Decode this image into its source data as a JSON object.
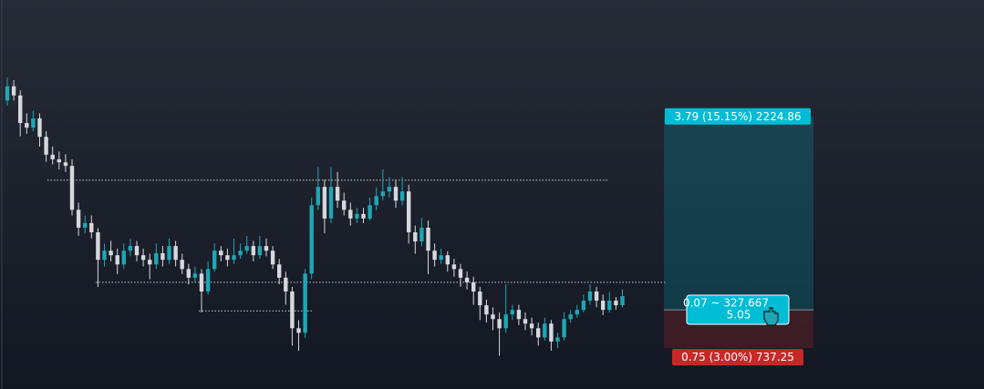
{
  "chart_data": {
    "type": "candlestick",
    "ylim": [
      23.45,
      31.07
    ],
    "up_color": "#1fa6b4",
    "down_color": "#d6d8de",
    "candles": [
      [
        29.1,
        29.55,
        29.0,
        29.38
      ],
      [
        29.38,
        29.5,
        29.1,
        29.2
      ],
      [
        29.2,
        29.3,
        28.4,
        28.66
      ],
      [
        28.66,
        28.85,
        28.45,
        28.57
      ],
      [
        28.57,
        28.9,
        28.5,
        28.75
      ],
      [
        28.75,
        28.85,
        28.2,
        28.39
      ],
      [
        28.39,
        28.5,
        27.9,
        28.04
      ],
      [
        28.04,
        28.2,
        27.85,
        27.95
      ],
      [
        27.95,
        28.1,
        27.75,
        27.89
      ],
      [
        27.89,
        28.05,
        27.7,
        27.82
      ],
      [
        27.82,
        27.95,
        26.85,
        26.96
      ],
      [
        26.96,
        27.1,
        26.45,
        26.61
      ],
      [
        26.61,
        26.85,
        26.5,
        26.7
      ],
      [
        26.7,
        26.85,
        26.4,
        26.52
      ],
      [
        26.52,
        26.6,
        25.45,
        25.98
      ],
      [
        25.98,
        26.3,
        25.85,
        26.16
      ],
      [
        26.16,
        26.35,
        25.95,
        26.07
      ],
      [
        26.07,
        26.2,
        25.7,
        25.89
      ],
      [
        25.89,
        26.3,
        25.8,
        26.16
      ],
      [
        26.16,
        26.4,
        26.05,
        26.25
      ],
      [
        26.25,
        26.35,
        25.95,
        26.07
      ],
      [
        26.07,
        26.2,
        25.85,
        25.98
      ],
      [
        25.98,
        26.1,
        25.6,
        25.89
      ],
      [
        25.89,
        26.3,
        25.8,
        26.11
      ],
      [
        26.11,
        26.25,
        25.85,
        25.98
      ],
      [
        25.98,
        26.4,
        25.9,
        26.25
      ],
      [
        26.25,
        26.35,
        25.85,
        25.98
      ],
      [
        25.98,
        26.1,
        25.7,
        25.8
      ],
      [
        25.8,
        25.9,
        25.5,
        25.63
      ],
      [
        25.63,
        25.85,
        25.55,
        25.71
      ],
      [
        25.71,
        25.8,
        24.95,
        25.36
      ],
      [
        25.36,
        25.95,
        25.3,
        25.8
      ],
      [
        25.8,
        26.3,
        25.75,
        26.16
      ],
      [
        26.16,
        26.25,
        25.95,
        26.07
      ],
      [
        26.07,
        26.2,
        25.85,
        25.98
      ],
      [
        25.98,
        26.4,
        25.9,
        26.07
      ],
      [
        26.07,
        26.3,
        26.0,
        26.16
      ],
      [
        26.16,
        26.45,
        26.1,
        26.25
      ],
      [
        26.25,
        26.35,
        25.95,
        26.07
      ],
      [
        26.07,
        26.45,
        26.0,
        26.25
      ],
      [
        26.25,
        26.4,
        26.05,
        26.16
      ],
      [
        26.16,
        26.25,
        25.8,
        25.89
      ],
      [
        25.89,
        26.0,
        25.5,
        25.63
      ],
      [
        25.63,
        25.75,
        25.1,
        25.36
      ],
      [
        25.36,
        25.45,
        24.3,
        24.64
      ],
      [
        24.64,
        24.8,
        24.2,
        24.55
      ],
      [
        24.55,
        25.8,
        24.45,
        25.71
      ],
      [
        25.71,
        27.2,
        25.6,
        27.05
      ],
      [
        27.05,
        27.8,
        26.95,
        27.41
      ],
      [
        27.41,
        27.55,
        26.5,
        26.79
      ],
      [
        26.79,
        27.8,
        26.7,
        27.41
      ],
      [
        27.41,
        27.7,
        27.0,
        27.14
      ],
      [
        27.14,
        27.3,
        26.85,
        26.96
      ],
      [
        26.96,
        27.1,
        26.65,
        26.79
      ],
      [
        26.79,
        27.0,
        26.7,
        26.88
      ],
      [
        26.88,
        27.0,
        26.7,
        26.79
      ],
      [
        26.79,
        27.2,
        26.75,
        27.05
      ],
      [
        27.05,
        27.4,
        26.95,
        27.23
      ],
      [
        27.23,
        27.75,
        27.15,
        27.32
      ],
      [
        27.32,
        27.6,
        27.2,
        27.41
      ],
      [
        27.41,
        27.55,
        27.0,
        27.14
      ],
      [
        27.14,
        27.6,
        27.05,
        27.32
      ],
      [
        27.32,
        27.45,
        26.3,
        26.52
      ],
      [
        26.52,
        26.65,
        26.1,
        26.34
      ],
      [
        26.34,
        26.8,
        26.25,
        26.61
      ],
      [
        26.61,
        26.75,
        25.7,
        26.16
      ],
      [
        26.16,
        26.3,
        25.85,
        25.98
      ],
      [
        25.98,
        26.2,
        25.9,
        26.07
      ],
      [
        26.07,
        26.15,
        25.75,
        25.89
      ],
      [
        25.89,
        26.0,
        25.65,
        25.8
      ],
      [
        25.8,
        25.9,
        25.45,
        25.63
      ],
      [
        25.63,
        25.75,
        25.4,
        25.54
      ],
      [
        25.54,
        25.65,
        25.1,
        25.36
      ],
      [
        25.36,
        25.45,
        24.8,
        25.09
      ],
      [
        25.09,
        25.2,
        24.75,
        24.91
      ],
      [
        24.91,
        25.05,
        24.6,
        24.82
      ],
      [
        24.82,
        24.95,
        24.1,
        24.64
      ],
      [
        24.64,
        25.5,
        24.55,
        24.91
      ],
      [
        24.91,
        25.1,
        24.8,
        25.0
      ],
      [
        25.0,
        25.1,
        24.7,
        24.82
      ],
      [
        24.82,
        24.95,
        24.6,
        24.73
      ],
      [
        24.73,
        24.85,
        24.5,
        24.64
      ],
      [
        24.64,
        24.75,
        24.3,
        24.46
      ],
      [
        24.46,
        24.85,
        24.4,
        24.73
      ],
      [
        24.73,
        24.8,
        24.2,
        24.38
      ],
      [
        24.38,
        24.55,
        24.25,
        24.46
      ],
      [
        24.46,
        24.95,
        24.4,
        24.82
      ],
      [
        24.82,
        25.0,
        24.75,
        24.91
      ],
      [
        24.91,
        25.1,
        24.85,
        25.0
      ],
      [
        25.0,
        25.3,
        24.95,
        25.18
      ],
      [
        25.18,
        25.5,
        25.1,
        25.36
      ],
      [
        25.36,
        25.45,
        25.05,
        25.18
      ],
      [
        25.18,
        25.3,
        24.9,
        25.0
      ],
      [
        25.0,
        25.35,
        24.95,
        25.18
      ],
      [
        25.18,
        25.25,
        25.0,
        25.09
      ],
      [
        25.09,
        25.4,
        25.05,
        25.27
      ]
    ],
    "levels": [
      27.54,
      25.54,
      24.98
    ],
    "position": {
      "entry": 25.0,
      "target": 28.79,
      "stop": 24.25,
      "target_label": "3.79 (15.15%) 2224.86",
      "stop_label": "0.75 (3.00%) 737.25",
      "info_label_1": "0.07 ~ 327.667",
      "info_label_2": "5.05",
      "target_color": "#00bcd4",
      "stop_color": "#c62828"
    }
  }
}
